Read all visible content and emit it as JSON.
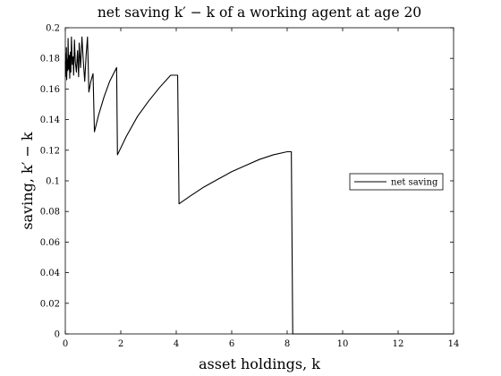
{
  "chart_data": {
    "type": "line",
    "title": "net saving k′ − k of a working agent at age 20",
    "xlabel": "asset holdings, k",
    "ylabel": "saving, k′ − k",
    "xlim": [
      0,
      14
    ],
    "ylim": [
      0,
      0.2
    ],
    "xticks": [
      0,
      2,
      4,
      6,
      8,
      10,
      12,
      14
    ],
    "yticks": [
      0,
      0.02,
      0.04,
      0.06,
      0.08,
      0.1,
      0.12,
      0.14,
      0.16,
      0.18,
      0.2
    ],
    "grid": false,
    "legend_position": "center-right",
    "series": [
      {
        "name": "net saving",
        "color": "#000000",
        "x": [
          0.0,
          0.01,
          0.02,
          0.03,
          0.04,
          0.05,
          0.07,
          0.09,
          0.1,
          0.12,
          0.14,
          0.16,
          0.18,
          0.2,
          0.22,
          0.25,
          0.28,
          0.3,
          0.33,
          0.36,
          0.4,
          0.44,
          0.48,
          0.5,
          0.55,
          0.6,
          0.65,
          0.7,
          0.75,
          0.8,
          0.85,
          0.92,
          1.0,
          1.05,
          1.2,
          1.4,
          1.6,
          1.85,
          1.88,
          2.2,
          2.6,
          3.0,
          3.4,
          3.8,
          4.05,
          4.1,
          4.5,
          5.0,
          5.5,
          6.0,
          6.5,
          7.0,
          7.5,
          8.0,
          8.15,
          8.2,
          9.0,
          10.0,
          11.0,
          12.0,
          13.0,
          14.0
        ],
        "values": [
          0.178,
          0.168,
          0.183,
          0.17,
          0.187,
          0.166,
          0.179,
          0.172,
          0.193,
          0.173,
          0.182,
          0.167,
          0.184,
          0.171,
          0.194,
          0.176,
          0.181,
          0.169,
          0.192,
          0.178,
          0.171,
          0.185,
          0.168,
          0.19,
          0.174,
          0.194,
          0.178,
          0.165,
          0.182,
          0.194,
          0.158,
          0.165,
          0.17,
          0.132,
          0.143,
          0.155,
          0.165,
          0.174,
          0.117,
          0.129,
          0.142,
          0.152,
          0.161,
          0.169,
          0.169,
          0.085,
          0.09,
          0.096,
          0.101,
          0.106,
          0.11,
          0.114,
          0.117,
          0.119,
          0.119,
          0.0,
          0.0,
          0.0,
          0.0,
          0.0,
          0.0,
          0.0
        ]
      }
    ]
  }
}
